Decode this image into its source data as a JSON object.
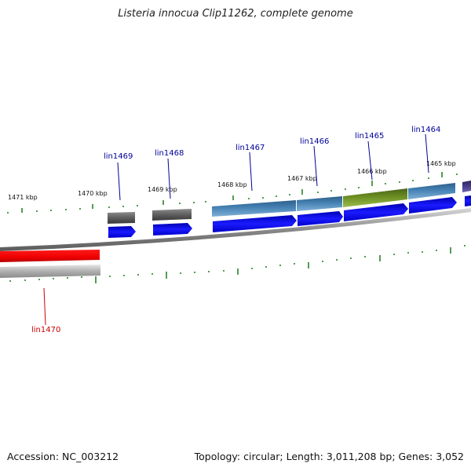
{
  "title": "Listeria innocua Clip11262, complete genome",
  "footer": {
    "accession": "Accession: NC_003212",
    "summary": "Topology: circular; Length: 3,011,208 bp; Genes: 3,052"
  },
  "ruler_labels": [
    "1471 kbp",
    "1470 kbp",
    "1469 kbp",
    "1468 kbp",
    "1467 kbp",
    "1466 kbp",
    "1465 kbp"
  ],
  "genes": [
    {
      "name": "lin1469",
      "color": "#000099"
    },
    {
      "name": "lin1468",
      "color": "#000099"
    },
    {
      "name": "lin1467",
      "color": "#000099"
    },
    {
      "name": "lin1466",
      "color": "#000099"
    },
    {
      "name": "lin1465",
      "color": "#000099"
    },
    {
      "name": "lin1464",
      "color": "#000099"
    },
    {
      "name": "lin1470",
      "color": "#cc0000"
    }
  ],
  "colors": {
    "backbone": "#8a8a8a",
    "cds_forward": "#1010ee",
    "cds_reverse": "#ee0000",
    "cog_gray": "#5e5e5e",
    "cog_steelblue": "#4682b4",
    "cog_olive": "#6b8e23",
    "cog_slateblue": "#483d8b",
    "cog_lightgray": "#b0b0b0",
    "tick": "#1a7a1a"
  }
}
